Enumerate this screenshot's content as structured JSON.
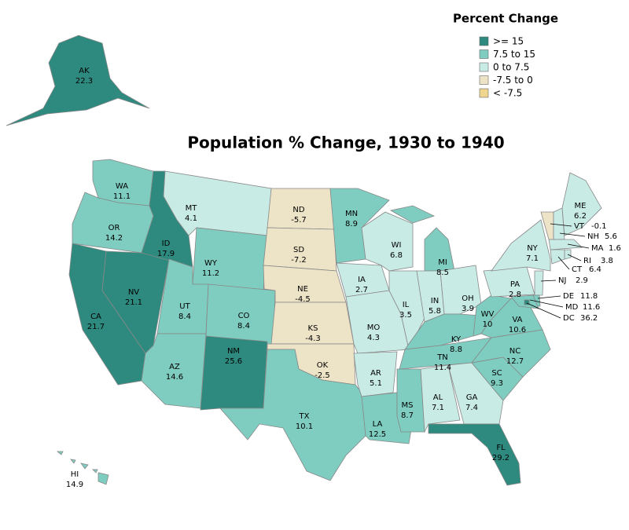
{
  "title": "Population % Change, 1930 to 1940",
  "legend": {
    "title": "Percent Change",
    "items": [
      {
        "label": ">= 15",
        "color": "#2e8a7f",
        "min": 15
      },
      {
        "label": "7.5 to 15",
        "color": "#7fcdc0",
        "min": 7.5
      },
      {
        "label": "0 to 7.5",
        "color": "#c9ebe5",
        "min": 0
      },
      {
        "label": "-7.5 to 0",
        "color": "#ede3c6",
        "min": -7.5
      },
      {
        "label": "< -7.5",
        "color": "#f0d58f"
      }
    ]
  },
  "states": [
    {
      "abbr": "AK",
      "value": 22.3
    },
    {
      "abbr": "WA",
      "value": 11.1
    },
    {
      "abbr": "OR",
      "value": 14.2
    },
    {
      "abbr": "CA",
      "value": 21.7
    },
    {
      "abbr": "NV",
      "value": 21.1
    },
    {
      "abbr": "ID",
      "value": 17.9
    },
    {
      "abbr": "MT",
      "value": 4.1
    },
    {
      "abbr": "WY",
      "value": 11.2
    },
    {
      "abbr": "UT",
      "value": 8.4
    },
    {
      "abbr": "AZ",
      "value": 14.6
    },
    {
      "abbr": "CO",
      "value": 8.4
    },
    {
      "abbr": "NM",
      "value": 25.6
    },
    {
      "abbr": "ND",
      "value": -5.7
    },
    {
      "abbr": "SD",
      "value": -7.2
    },
    {
      "abbr": "NE",
      "value": -4.5
    },
    {
      "abbr": "KS",
      "value": -4.3
    },
    {
      "abbr": "OK",
      "value": -2.5
    },
    {
      "abbr": "TX",
      "value": 10.1
    },
    {
      "abbr": "MN",
      "value": 8.9
    },
    {
      "abbr": "IA",
      "value": 2.7
    },
    {
      "abbr": "MO",
      "value": 4.3
    },
    {
      "abbr": "AR",
      "value": 5.1
    },
    {
      "abbr": "LA",
      "value": 12.5
    },
    {
      "abbr": "WI",
      "value": 6.8
    },
    {
      "abbr": "IL",
      "value": 3.5
    },
    {
      "abbr": "MI",
      "value": 8.5
    },
    {
      "abbr": "IN",
      "value": 5.8
    },
    {
      "abbr": "OH",
      "value": 3.9
    },
    {
      "abbr": "KY",
      "value": 8.8
    },
    {
      "abbr": "TN",
      "value": 11.4
    },
    {
      "abbr": "MS",
      "value": 8.7
    },
    {
      "abbr": "AL",
      "value": 7.1
    },
    {
      "abbr": "GA",
      "value": 7.4
    },
    {
      "abbr": "FL",
      "value": 29.2
    },
    {
      "abbr": "SC",
      "value": 9.3
    },
    {
      "abbr": "NC",
      "value": 12.7
    },
    {
      "abbr": "VA",
      "value": 10.6
    },
    {
      "abbr": "WV",
      "value": 10
    },
    {
      "abbr": "PA",
      "value": 2.8
    },
    {
      "abbr": "NY",
      "value": 7.1
    },
    {
      "abbr": "ME",
      "value": 6.2
    },
    {
      "abbr": "VT",
      "value": -0.1
    },
    {
      "abbr": "NH",
      "value": 5.6
    },
    {
      "abbr": "MA",
      "value": 1.6
    },
    {
      "abbr": "RI",
      "value": 3.8
    },
    {
      "abbr": "CT",
      "value": 6.4
    },
    {
      "abbr": "NJ",
      "value": 2.9
    },
    {
      "abbr": "DE",
      "value": 11.8
    },
    {
      "abbr": "MD",
      "value": 11.6
    },
    {
      "abbr": "DC",
      "value": 36.2
    },
    {
      "abbr": "HI",
      "value": 14.9
    }
  ]
}
